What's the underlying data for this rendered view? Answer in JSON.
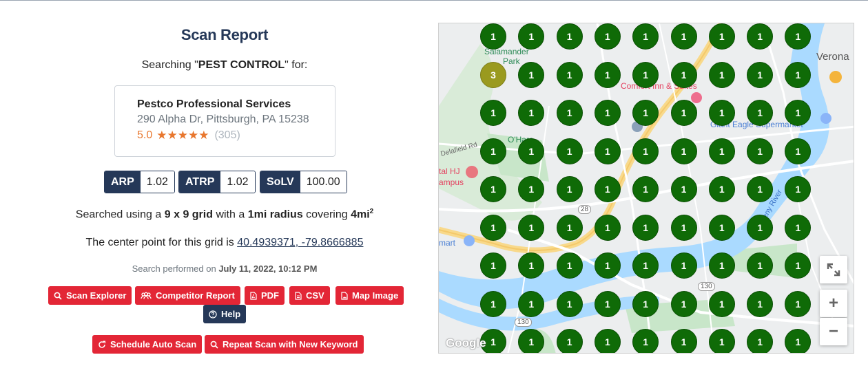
{
  "report": {
    "title": "Scan Report",
    "searching_prefix": "Searching \"",
    "keyword": "PEST CONTROL",
    "searching_suffix": "\" for:"
  },
  "business": {
    "name": "Pestco Professional Services",
    "address": "290 Alpha Dr, Pittsburgh, PA 15238",
    "rating": "5.0",
    "stars": "★★★★★",
    "reviews": "(305)"
  },
  "metrics": [
    {
      "key": "ARP",
      "value": "1.02"
    },
    {
      "key": "ATRP",
      "value": "1.02"
    },
    {
      "key": "SoLV",
      "value": "100.00"
    }
  ],
  "grid_info": {
    "p1": "Searched using a ",
    "grid": "9 x 9 grid",
    "p2": " with a ",
    "radius": "1mi radius",
    "p3": " covering ",
    "area": "4mi",
    "area_sup": "2"
  },
  "center": {
    "prefix": "The center point for this grid is ",
    "coords": "40.4939371, -79.8666885"
  },
  "performed": {
    "prefix": "Search performed on ",
    "date": "July 11, 2022, 10:12 PM"
  },
  "buttons": {
    "scan_explorer": "Scan Explorer",
    "competitor_report": "Competitor Report",
    "pdf": "PDF",
    "csv": "CSV",
    "map_image": "Map Image",
    "help": "Help",
    "schedule": "Schedule Auto Scan",
    "repeat": "Repeat Scan with New Keyword"
  },
  "map": {
    "grid_ranks": [
      [
        "1",
        "1",
        "1",
        "1",
        "1",
        "1",
        "1",
        "1",
        "1"
      ],
      [
        "3",
        "1",
        "1",
        "1",
        "1",
        "1",
        "1",
        "1",
        "1"
      ],
      [
        "1",
        "1",
        "1",
        "1",
        "1",
        "1",
        "1",
        "1",
        "1"
      ],
      [
        "1",
        "1",
        "1",
        "1",
        "1",
        "1",
        "1",
        "1",
        "1"
      ],
      [
        "1",
        "1",
        "1",
        "1",
        "1",
        "1",
        "1",
        "1",
        "1"
      ],
      [
        "1",
        "1",
        "1",
        "1",
        "1",
        "1",
        "1",
        "1",
        "1"
      ],
      [
        "1",
        "1",
        "1",
        "1",
        "1",
        "1",
        "1",
        "1",
        "1"
      ],
      [
        "1",
        "1",
        "1",
        "1",
        "1",
        "1",
        "1",
        "1",
        "1"
      ],
      [
        "1",
        "1",
        "1",
        "1",
        "1",
        "1",
        "1",
        "1",
        "1"
      ]
    ],
    "colors": {
      "top_rank": "#0f6b07",
      "rank_3": "#9a9a1f",
      "water": "#aadaff",
      "park": "#c8e6c9"
    },
    "labels": {
      "salamander": "Salamander",
      "park": "Park",
      "verona": "Verona",
      "comfort_inn": "Comfort Inn & Suites",
      "giant_eagle": "Giant Eagle Supermarket",
      "ohara": "O'Hara",
      "delafield": "Delafield Rd",
      "ohj": "tal HJ",
      "ampus": "ampus",
      "mart": "mart",
      "route28": "28",
      "route130a": "130",
      "route130b": "130",
      "allegheny": "Allegheny River",
      "google": "Google"
    },
    "controls": {
      "zoom_in": "+",
      "zoom_out": "−"
    }
  },
  "icons": [
    "search-icon",
    "users-icon",
    "pdf-icon",
    "csv-icon",
    "image-icon",
    "help-icon",
    "refresh-icon",
    "search-icon",
    "expand-icon"
  ]
}
